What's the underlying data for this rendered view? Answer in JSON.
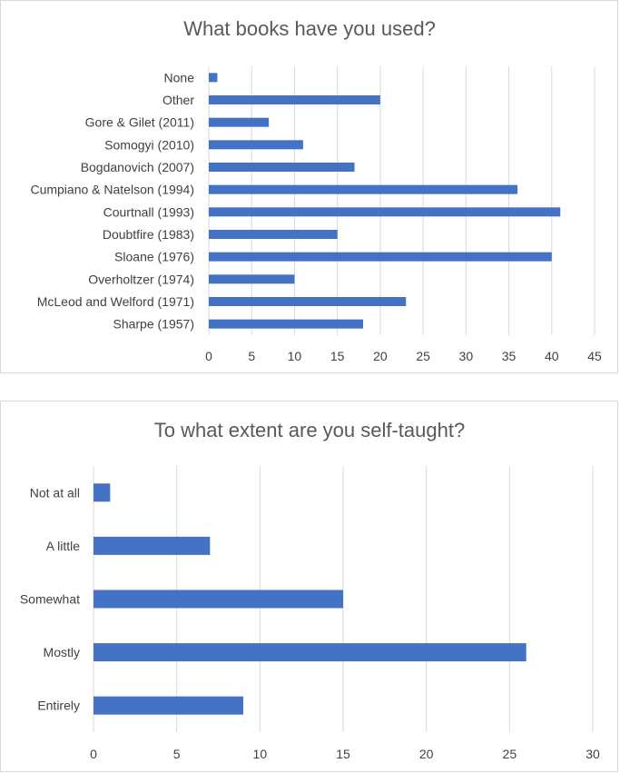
{
  "chart_data": [
    {
      "type": "bar",
      "orientation": "horizontal",
      "title": "What books have you used?",
      "categories": [
        "None",
        "Other",
        "Gore & Gilet (2011)",
        "Somogyi (2010)",
        "Bogdanovich (2007)",
        "Cumpiano & Natelson (1994)",
        "Courtnall (1993)",
        "Doubtfire (1983)",
        "Sloane (1976)",
        "Overholtzer (1974)",
        "McLeod and Welford (1971)",
        "Sharpe (1957)"
      ],
      "values": [
        1,
        20,
        7,
        11,
        17,
        36,
        41,
        15,
        40,
        10,
        23,
        18
      ],
      "xlim": [
        0,
        45
      ],
      "xticks": [
        "0",
        "5",
        "10",
        "15",
        "20",
        "25",
        "30",
        "35",
        "40",
        "45"
      ],
      "grid": true,
      "bar_color": "#4472c4"
    },
    {
      "type": "bar",
      "orientation": "horizontal",
      "title": "To what extent are you self-taught?",
      "categories": [
        "Not at all",
        "A little",
        "Somewhat",
        "Mostly",
        "Entirely"
      ],
      "values": [
        1,
        7,
        15,
        26,
        9
      ],
      "xlim": [
        0,
        30
      ],
      "xticks": [
        "0",
        "5",
        "10",
        "15",
        "20",
        "25",
        "30"
      ],
      "grid": true,
      "bar_color": "#4472c4"
    }
  ]
}
